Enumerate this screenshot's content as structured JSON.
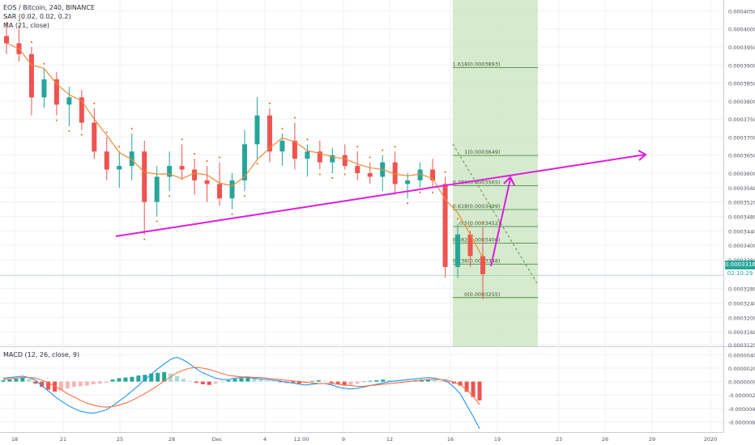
{
  "header": {
    "symbol": "EOS / Bitcoin, 240, BINANCE",
    "sar": "SAR (0.02, 0.02, 0.2)",
    "ma": "MA (21, close)",
    "macd": "MACD (12, 26, close, 9)"
  },
  "price_tags": {
    "current": "0.0003316",
    "countdown": "02:10:29"
  },
  "colors": {
    "up": "#26a69a",
    "down": "#ef5350",
    "ma": "#f08a3a",
    "sar": "#e07b1f",
    "trendline": "#e01be0",
    "fib_zone": "#cfe6c6",
    "fib_line": "#3d7a2e",
    "macd_line": "#2196f3",
    "signal_line": "#ff7043",
    "grid": "#eef0f3"
  },
  "chart_data": [
    {
      "type": "candlestick",
      "title": "EOS / Bitcoin, 240, BINANCE",
      "ylim": [
        0.000312,
        0.000408
      ],
      "y_ticks": [
        "0.0004050",
        "0.0004000",
        "0.0003950",
        "0.0003900",
        "0.0003850",
        "0.0003800",
        "0.0003750",
        "0.0003700",
        "0.0003650",
        "0.0003600",
        "0.0003560",
        "0.0003520",
        "0.0003480",
        "0.0003440",
        "0.0003400",
        "0.0003360",
        "0.0003320",
        "0.0003280",
        "0.0003240",
        "0.0003200",
        "0.0003160",
        "0.0003125"
      ],
      "x_ticks": [
        "18",
        "21",
        "25",
        "28",
        "Dec",
        "4",
        "12:00",
        "9",
        "12",
        "16",
        "19",
        "23",
        "26",
        "29",
        "2020"
      ],
      "ohlc_approx": [
        [
          0.000398,
          0.000402,
          0.000393,
          0.000396
        ],
        [
          0.000396,
          0.000401,
          0.000391,
          0.000393
        ],
        [
          0.000393,
          0.000395,
          0.000376,
          0.000381
        ],
        [
          0.000381,
          0.000389,
          0.000378,
          0.000386
        ],
        [
          0.000386,
          0.000388,
          0.000376,
          0.000379
        ],
        [
          0.000379,
          0.000384,
          0.000373,
          0.000381
        ],
        [
          0.000381,
          0.000383,
          0.000372,
          0.000374
        ],
        [
          0.000374,
          0.000378,
          0.000364,
          0.000366
        ],
        [
          0.000366,
          0.00037,
          0.000358,
          0.000361
        ],
        [
          0.000361,
          0.000366,
          0.000356,
          0.000362
        ],
        [
          0.000362,
          0.000371,
          0.000358,
          0.000366
        ],
        [
          0.000366,
          0.000369,
          0.000343,
          0.000352
        ],
        [
          0.000352,
          0.000362,
          0.000348,
          0.000359
        ],
        [
          0.000359,
          0.000366,
          0.000355,
          0.000362
        ],
        [
          0.000362,
          0.000368,
          0.000358,
          0.000361
        ],
        [
          0.000361,
          0.000364,
          0.000354,
          0.000358
        ],
        [
          0.000358,
          0.000362,
          0.000352,
          0.000357
        ],
        [
          0.000357,
          0.000363,
          0.000351,
          0.000353
        ],
        [
          0.000353,
          0.00036,
          0.00035,
          0.000358
        ],
        [
          0.000358,
          0.000372,
          0.000355,
          0.000368
        ],
        [
          0.000368,
          0.000381,
          0.000364,
          0.000376
        ],
        [
          0.000376,
          0.000378,
          0.000363,
          0.000366
        ],
        [
          0.000366,
          0.000371,
          0.000362,
          0.000369
        ],
        [
          0.000369,
          0.000374,
          0.000361,
          0.000364
        ],
        [
          0.000364,
          0.000368,
          0.000359,
          0.000366
        ],
        [
          0.000366,
          0.000369,
          0.000361,
          0.000363
        ],
        [
          0.000363,
          0.000367,
          0.00036,
          0.000365
        ],
        [
          0.000365,
          0.000368,
          0.000361,
          0.000362
        ],
        [
          0.000362,
          0.000366,
          0.000358,
          0.00036
        ],
        [
          0.00036,
          0.000363,
          0.000357,
          0.000359
        ],
        [
          0.000359,
          0.000365,
          0.000355,
          0.000363
        ],
        [
          0.000363,
          0.000366,
          0.000354,
          0.000357
        ],
        [
          0.000357,
          0.00036,
          0.000353,
          0.000358
        ],
        [
          0.000358,
          0.000363,
          0.000356,
          0.000361
        ],
        [
          0.000361,
          0.000364,
          0.000356,
          0.000358
        ],
        [
          0.000357,
          0.000359,
          0.000331,
          0.000334
        ],
        [
          0.000334,
          0.000346,
          0.000331,
          0.000343
        ],
        [
          0.000343,
          0.000344,
          0.000334,
          0.000337
        ],
        [
          0.000337,
          0.000345,
          0.000325,
          0.000332
        ]
      ],
      "fib_levels": [
        {
          "label": "1.618(0.0003893)",
          "value": 0.0003893
        },
        {
          "label": "1(0.0003649)",
          "value": 0.0003649
        },
        {
          "label": "0.786(0.0003565)",
          "value": 0.0003565
        },
        {
          "label": "0.618(0.0003499)",
          "value": 0.0003499
        },
        {
          "label": "0.5(0.0003452)",
          "value": 0.0003452
        },
        {
          "label": "0.382(0.0003406)",
          "value": 0.0003406
        },
        {
          "label": "0.236(0.0003348)",
          "value": 0.0003348
        },
        {
          "label": "0(0.0003255)",
          "value": 0.0003255
        }
      ],
      "current_price": 0.0003316
    },
    {
      "type": "bar",
      "title": "MACD (12, 26, close, 9)",
      "ylim": [
        -7.5e-06,
        5e-06
      ],
      "y_ticks": [
        "0.0000040",
        "0.0000020",
        "0.0000000",
        "-0.0000020",
        "-0.0000040",
        "-0.0000060"
      ],
      "histogram": [
        0.2,
        0.3,
        0.4,
        0.6,
        0.4,
        -0.3,
        -0.8,
        -1.2,
        -1.5,
        -1.3,
        -1.0,
        -0.8,
        -0.7,
        -0.6,
        -0.4,
        -0.3,
        -0.2,
        0.3,
        0.5,
        0.6,
        0.7,
        0.9,
        1.0,
        1.2,
        1.3,
        1.4,
        1.2,
        0.8,
        0.4,
        0.1,
        -0.2,
        -0.4,
        -0.5,
        -0.3,
        -0.1,
        0.2,
        0.4,
        0.5,
        0.6,
        0.5,
        0.3,
        0.1,
        0.0,
        -0.1,
        -0.2,
        -0.2,
        -0.3,
        -0.2,
        0.1,
        0.2,
        0.1,
        -0.2,
        -0.4,
        -0.6,
        -0.5,
        -0.3,
        0.0,
        0.1,
        0.2,
        0.3,
        0.2,
        0.1,
        0.0,
        0.1,
        0.2,
        0.3,
        0.3,
        0.2,
        0.1,
        -0.1,
        -0.3,
        -0.6,
        -1.5,
        -2.3,
        -2.8
      ],
      "macd": [
        0.5,
        0.6,
        0.7,
        0.8,
        0.6,
        0.2,
        -0.6,
        -1.4,
        -2.2,
        -2.9,
        -3.5,
        -4.0,
        -4.4,
        -4.6,
        -4.7,
        -4.5,
        -4.2,
        -3.6,
        -2.9,
        -2.2,
        -1.4,
        -0.6,
        0.3,
        1.1,
        1.9,
        2.6,
        3.3,
        3.6,
        3.2,
        2.6,
        1.9,
        1.3,
        0.9,
        0.5,
        0.3,
        0.3,
        0.5,
        0.6,
        0.6,
        0.5,
        0.4,
        0.3,
        0.2,
        0.1,
        -0.1,
        -0.2,
        -0.4,
        -0.5,
        -0.4,
        -0.3,
        -0.3,
        -0.5,
        -0.8,
        -1.0,
        -1.1,
        -1.0,
        -0.8,
        -0.6,
        -0.4,
        -0.2,
        0.0,
        0.1,
        0.2,
        0.3,
        0.4,
        0.5,
        0.6,
        0.5,
        0.3,
        0.0,
        -0.8,
        -1.8,
        -3.5,
        -5.2,
        -7.0
      ],
      "signal": [
        0.3,
        0.4,
        0.5,
        0.6,
        0.6,
        0.5,
        0.2,
        -0.2,
        -0.7,
        -1.2,
        -1.8,
        -2.3,
        -2.8,
        -3.2,
        -3.5,
        -3.7,
        -3.8,
        -3.7,
        -3.5,
        -3.2,
        -2.8,
        -2.3,
        -1.8,
        -1.2,
        -0.6,
        0.1,
        0.7,
        1.3,
        1.7,
        2.0,
        2.1,
        2.0,
        1.8,
        1.5,
        1.2,
        0.9,
        0.8,
        0.7,
        0.7,
        0.6,
        0.6,
        0.5,
        0.4,
        0.3,
        0.2,
        0.1,
        0.0,
        -0.1,
        -0.2,
        -0.3,
        -0.3,
        -0.3,
        -0.4,
        -0.5,
        -0.6,
        -0.7,
        -0.7,
        -0.6,
        -0.5,
        -0.4,
        -0.3,
        -0.2,
        -0.1,
        0.0,
        0.1,
        0.2,
        0.3,
        0.3,
        0.3,
        0.2,
        -0.1,
        -0.5,
        -1.2,
        -2.2,
        -3.4
      ],
      "value_unit": "1e-6"
    }
  ]
}
